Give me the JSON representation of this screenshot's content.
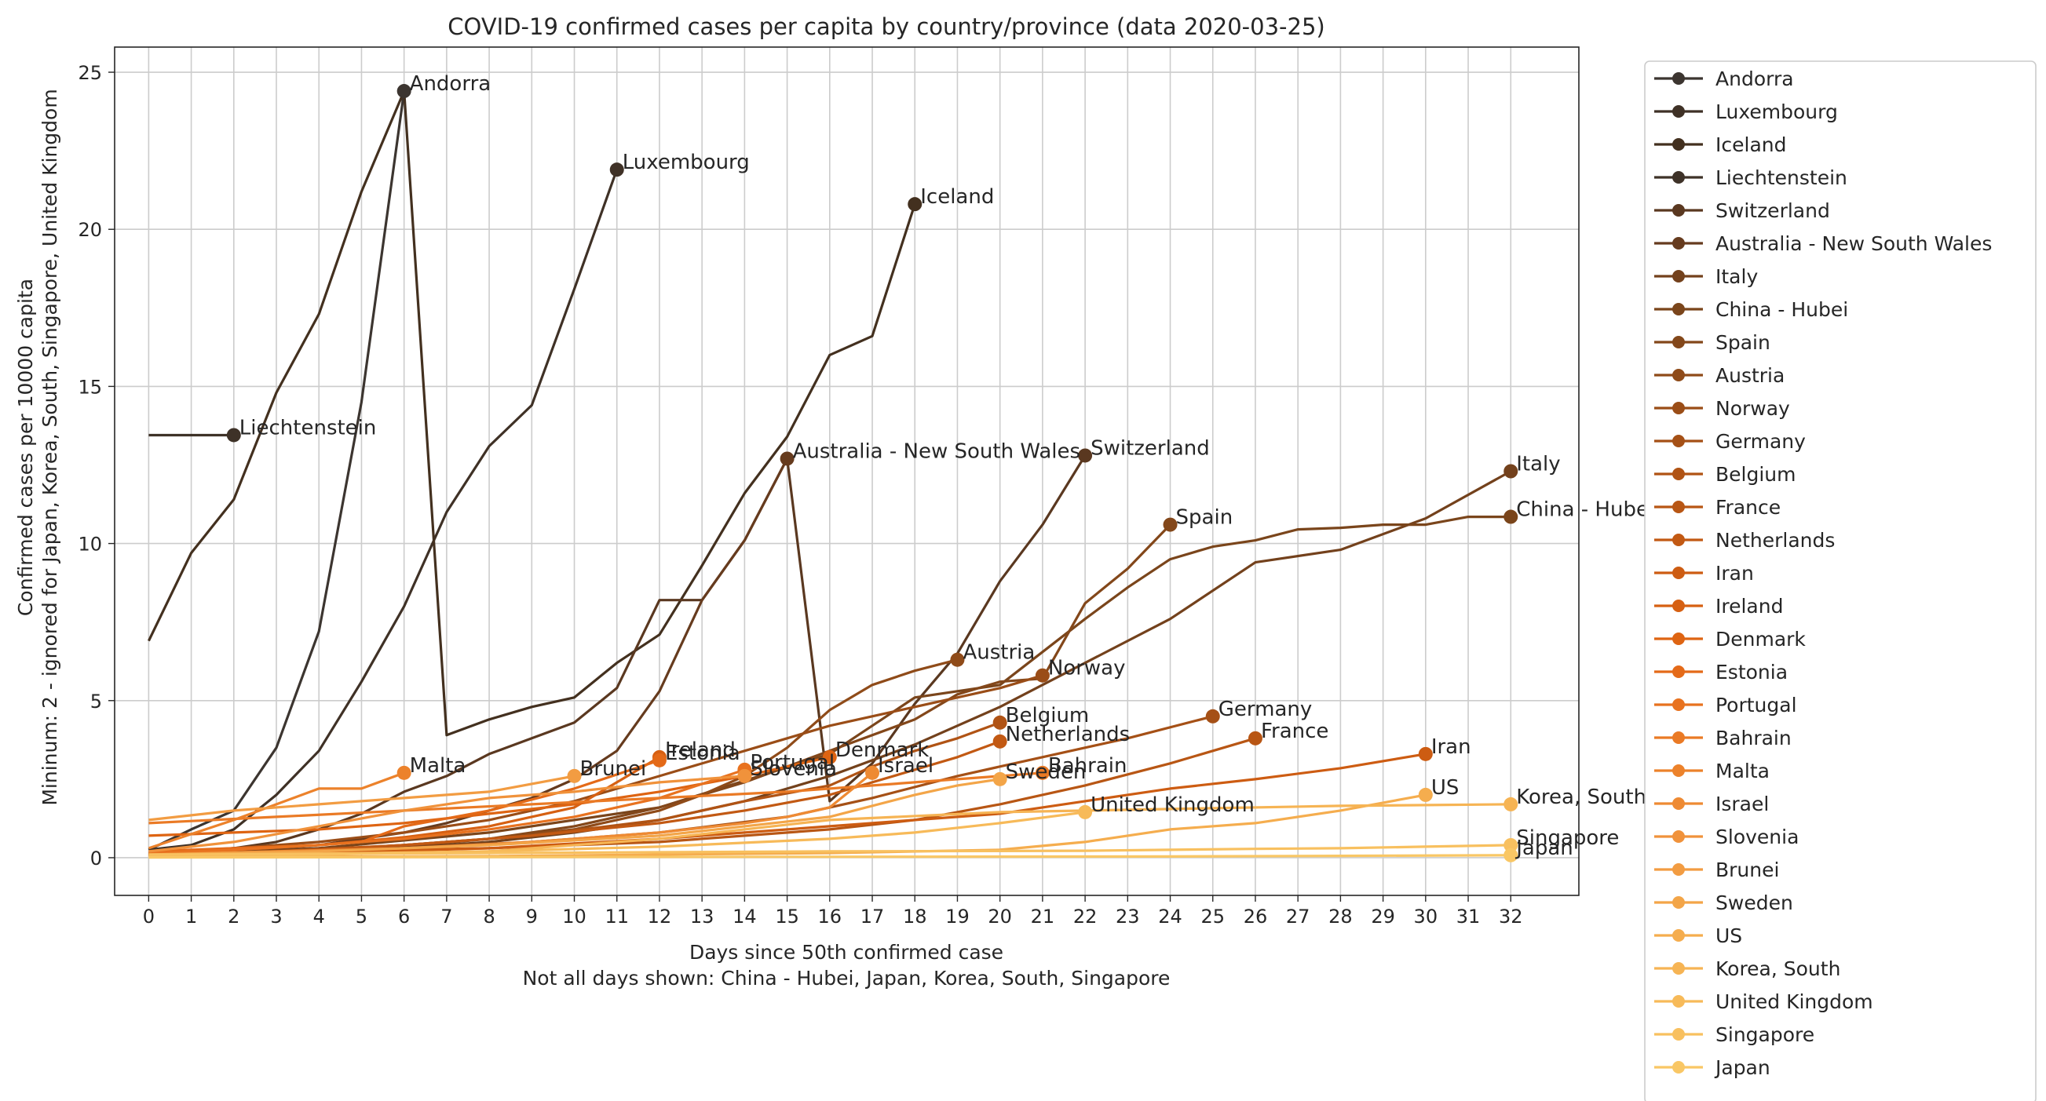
{
  "chart_data": {
    "type": "line",
    "title": "COVID-19 confirmed cases per capita by country/province (data 2020-03-25)",
    "xlabel": "Days since 50th confirmed case",
    "xlabel_note": "Not all days shown: China - Hubei, Japan, Korea, South, Singapore",
    "ylabel": "Confirmed cases per 10000 capita",
    "ylabel_note": "Mininum: 2 - ignored for Japan, Korea, South, Singapore, United Kingdom",
    "xlim": [
      -0.8,
      33.6
    ],
    "ylim": [
      -1.2,
      25.8
    ],
    "xticks": [
      0,
      1,
      2,
      3,
      4,
      5,
      6,
      7,
      8,
      9,
      10,
      11,
      12,
      13,
      14,
      15,
      16,
      17,
      18,
      19,
      20,
      21,
      22,
      23,
      24,
      25,
      26,
      27,
      28,
      29,
      30,
      31,
      32
    ],
    "yticks": [
      0,
      5,
      10,
      15,
      20,
      25
    ],
    "grid": true,
    "legend_placement": "outside-right",
    "series": [
      {
        "name": "Andorra",
        "color": "#3c3530",
        "x": [
          0,
          1,
          2,
          3,
          4,
          5,
          6
        ],
        "y": [
          0.25,
          0.9,
          1.5,
          3.5,
          7.2,
          14.5,
          24.4
        ]
      },
      {
        "name": "Luxembourg",
        "color": "#3f3126",
        "x": [
          0,
          1,
          2,
          3,
          4,
          5,
          6,
          7,
          8,
          9,
          10,
          11
        ],
        "y": [
          0.25,
          0.4,
          0.9,
          2.0,
          3.4,
          5.6,
          8.0,
          11.0,
          13.1,
          14.4,
          18.1,
          21.9
        ]
      },
      {
        "name": "Iceland",
        "color": "#43301f",
        "x": [
          0,
          1,
          2,
          3,
          4,
          5,
          6,
          7,
          8,
          9,
          10,
          11,
          12,
          13,
          14,
          15,
          16,
          17,
          18
        ],
        "y": [
          6.9,
          9.7,
          11.4,
          14.8,
          17.3,
          21.2,
          24.4,
          3.9,
          4.4,
          4.8,
          5.1,
          6.2,
          7.1,
          9.3,
          11.6,
          13.4,
          16.0,
          16.6,
          20.8
        ]
      },
      {
        "name": "Liechtenstein",
        "color": "#3e3228",
        "x": [
          0,
          1,
          2
        ],
        "y": [
          13.45,
          13.45,
          13.45
        ]
      },
      {
        "name": "Switzerland",
        "color": "#5a3820",
        "x": [
          0,
          1,
          2,
          3,
          4,
          5,
          6,
          7,
          8,
          9,
          10,
          11,
          12,
          13,
          14,
          15,
          16,
          17,
          18,
          19,
          20,
          21,
          22
        ],
        "y": [
          0.15,
          0.2,
          0.3,
          0.5,
          0.9,
          1.4,
          2.1,
          2.6,
          3.3,
          3.8,
          4.3,
          5.4,
          8.2,
          8.2,
          10.1,
          12.7,
          1.8,
          3.0,
          4.9,
          6.5,
          8.8,
          10.6,
          12.8
        ]
      },
      {
        "name": "Australia - New South Wales",
        "color": "#663b1e",
        "x": [
          0,
          1,
          2,
          3,
          4,
          5,
          6,
          7,
          8,
          9,
          10,
          11,
          12,
          13,
          14,
          15
        ],
        "y": [
          0.1,
          0.15,
          0.2,
          0.3,
          0.4,
          0.6,
          0.8,
          1.1,
          1.5,
          1.9,
          2.5,
          3.4,
          5.3,
          8.2,
          10.1,
          12.7
        ]
      },
      {
        "name": "Italy",
        "color": "#73411c",
        "x": [
          0,
          2,
          4,
          6,
          8,
          10,
          12,
          14,
          16,
          18,
          20,
          22,
          24,
          26,
          28,
          30,
          32
        ],
        "y": [
          0.1,
          0.15,
          0.2,
          0.3,
          0.5,
          0.8,
          1.2,
          1.8,
          2.6,
          3.6,
          4.8,
          6.2,
          7.6,
          9.4,
          9.8,
          10.8,
          12.3
        ]
      },
      {
        "name": "China - Hubei",
        "color": "#7a451b",
        "x": [
          0,
          4,
          8,
          12,
          16,
          18,
          20,
          22,
          23,
          24,
          25,
          26,
          27,
          28,
          29,
          30,
          31,
          32
        ],
        "y": [
          0.1,
          0.3,
          0.8,
          1.6,
          3.3,
          5.1,
          5.5,
          7.6,
          8.6,
          9.5,
          9.9,
          10.1,
          10.45,
          10.5,
          10.6,
          10.6,
          10.85,
          10.85
        ]
      },
      {
        "name": "Spain",
        "color": "#83471a",
        "x": [
          0,
          2,
          4,
          6,
          8,
          10,
          12,
          14,
          16,
          18,
          19,
          20,
          21,
          22,
          23,
          24
        ],
        "y": [
          0.1,
          0.15,
          0.2,
          0.35,
          0.6,
          1.0,
          1.6,
          2.4,
          3.4,
          4.4,
          5.2,
          5.6,
          5.7,
          8.1,
          9.2,
          10.6
        ]
      },
      {
        "name": "Austria",
        "color": "#8f4b19",
        "x": [
          0,
          2,
          4,
          6,
          8,
          10,
          12,
          13,
          14,
          15,
          16,
          17,
          18,
          19
        ],
        "y": [
          0.1,
          0.15,
          0.25,
          0.4,
          0.6,
          0.9,
          1.5,
          2.0,
          2.6,
          3.5,
          4.7,
          5.5,
          5.95,
          6.3
        ]
      },
      {
        "name": "Norway",
        "color": "#9a4d17",
        "x": [
          0,
          2,
          4,
          6,
          8,
          10,
          12,
          14,
          15,
          16,
          17,
          18,
          19,
          20,
          21
        ],
        "y": [
          0.15,
          0.3,
          0.5,
          0.8,
          1.2,
          1.8,
          2.6,
          3.4,
          3.8,
          4.2,
          4.5,
          4.8,
          5.1,
          5.4,
          5.8
        ]
      },
      {
        "name": "Germany",
        "color": "#a55016",
        "x": [
          0,
          3,
          6,
          9,
          12,
          15,
          17,
          19,
          21,
          23,
          25
        ],
        "y": [
          0.1,
          0.2,
          0.3,
          0.5,
          0.8,
          1.3,
          1.9,
          2.6,
          3.2,
          3.8,
          4.5
        ]
      },
      {
        "name": "Belgium",
        "color": "#b05314",
        "x": [
          0,
          3,
          6,
          9,
          12,
          14,
          16,
          17,
          18,
          19,
          20
        ],
        "y": [
          0.1,
          0.2,
          0.4,
          0.7,
          1.2,
          1.8,
          2.3,
          2.9,
          3.4,
          3.8,
          4.3
        ]
      },
      {
        "name": "France",
        "color": "#b85614",
        "x": [
          0,
          4,
          8,
          12,
          16,
          18,
          20,
          22,
          24,
          25,
          26
        ],
        "y": [
          0.1,
          0.2,
          0.3,
          0.5,
          0.9,
          1.2,
          1.7,
          2.3,
          3.0,
          3.4,
          3.8
        ]
      },
      {
        "name": "Netherlands",
        "color": "#c25913",
        "x": [
          0,
          3,
          6,
          9,
          12,
          14,
          16,
          17,
          18,
          19,
          20
        ],
        "y": [
          0.1,
          0.2,
          0.4,
          0.7,
          1.1,
          1.5,
          2.0,
          2.4,
          2.8,
          3.2,
          3.7
        ]
      },
      {
        "name": "Iran",
        "color": "#cd5c12",
        "x": [
          0,
          4,
          8,
          12,
          16,
          20,
          22,
          24,
          26,
          28,
          30
        ],
        "y": [
          0.1,
          0.15,
          0.3,
          0.6,
          1.0,
          1.4,
          1.8,
          2.2,
          2.5,
          2.85,
          3.3
        ]
      },
      {
        "name": "Ireland",
        "color": "#d66012",
        "x": [
          0,
          2,
          4,
          6,
          8,
          10,
          12
        ],
        "y": [
          0.15,
          0.25,
          0.4,
          0.65,
          1.0,
          1.6,
          3.2
        ]
      },
      {
        "name": "Denmark",
        "color": "#de6412",
        "x": [
          0,
          2,
          4,
          6,
          8,
          10,
          12,
          14,
          16
        ],
        "y": [
          0.7,
          0.8,
          0.9,
          1.1,
          1.4,
          1.7,
          2.1,
          2.6,
          3.2
        ]
      },
      {
        "name": "Estonia",
        "color": "#e46a18",
        "x": [
          0,
          2,
          4,
          5,
          6,
          8,
          10,
          12
        ],
        "y": [
          0.2,
          0.3,
          0.4,
          0.5,
          1.0,
          1.5,
          2.2,
          3.1
        ]
      },
      {
        "name": "Portugal",
        "color": "#e8721f",
        "x": [
          0,
          2,
          4,
          6,
          8,
          10,
          12,
          14
        ],
        "y": [
          0.15,
          0.25,
          0.4,
          0.6,
          0.9,
          1.3,
          1.9,
          2.8
        ]
      },
      {
        "name": "Bahrain",
        "color": "#ea7a25",
        "x": [
          0,
          3,
          6,
          9,
          12,
          15,
          18,
          21
        ],
        "y": [
          1.1,
          1.3,
          1.5,
          1.7,
          1.9,
          2.1,
          2.4,
          2.7
        ]
      },
      {
        "name": "Malta",
        "color": "#ec822b",
        "x": [
          0,
          2,
          4,
          5,
          6
        ],
        "y": [
          0.3,
          1.2,
          2.2,
          2.2,
          2.7
        ]
      },
      {
        "name": "Israel",
        "color": "#ee8a33",
        "x": [
          0,
          3,
          6,
          9,
          12,
          14,
          15,
          16,
          17
        ],
        "y": [
          0.1,
          0.2,
          0.3,
          0.5,
          0.8,
          1.1,
          1.3,
          1.6,
          2.7
        ]
      },
      {
        "name": "Slovenia",
        "color": "#f0923b",
        "x": [
          0,
          2,
          4,
          6,
          8,
          10,
          12,
          14
        ],
        "y": [
          0.2,
          0.5,
          1.0,
          1.5,
          1.9,
          2.1,
          2.4,
          2.6
        ]
      },
      {
        "name": "Brunei",
        "color": "#f29c42",
        "x": [
          0,
          2,
          4,
          6,
          8,
          10
        ],
        "y": [
          1.2,
          1.5,
          1.7,
          1.9,
          2.1,
          2.6
        ]
      },
      {
        "name": "Sweden",
        "color": "#f3a548",
        "x": [
          0,
          4,
          8,
          12,
          16,
          18,
          19,
          20
        ],
        "y": [
          0.1,
          0.2,
          0.4,
          0.7,
          1.3,
          2.0,
          2.3,
          2.5
        ]
      },
      {
        "name": "US",
        "color": "#f5ad4e",
        "x": [
          0,
          8,
          16,
          20,
          22,
          24,
          26,
          28,
          30
        ],
        "y": [
          0.02,
          0.05,
          0.15,
          0.25,
          0.5,
          0.9,
          1.1,
          1.5,
          2.0
        ]
      },
      {
        "name": "Korea, South",
        "color": "#f6b454",
        "x": [
          0,
          8,
          12,
          16,
          20,
          24,
          28,
          32
        ],
        "y": [
          0.05,
          0.2,
          0.6,
          1.2,
          1.45,
          1.55,
          1.65,
          1.7
        ]
      },
      {
        "name": "United Kingdom",
        "color": "#f7ba59",
        "x": [
          0,
          4,
          8,
          12,
          16,
          18,
          20,
          22
        ],
        "y": [
          0.05,
          0.1,
          0.2,
          0.35,
          0.6,
          0.8,
          1.1,
          1.45
        ]
      },
      {
        "name": "Singapore",
        "color": "#f8c05f",
        "x": [
          0,
          8,
          16,
          22,
          24,
          26,
          28,
          30,
          32
        ],
        "y": [
          0.1,
          0.15,
          0.2,
          0.22,
          0.25,
          0.28,
          0.3,
          0.35,
          0.4
        ]
      },
      {
        "name": "Japan",
        "color": "#f9c765",
        "x": [
          0,
          8,
          16,
          24,
          28,
          32
        ],
        "y": [
          0.01,
          0.02,
          0.03,
          0.04,
          0.06,
          0.08
        ]
      }
    ]
  }
}
